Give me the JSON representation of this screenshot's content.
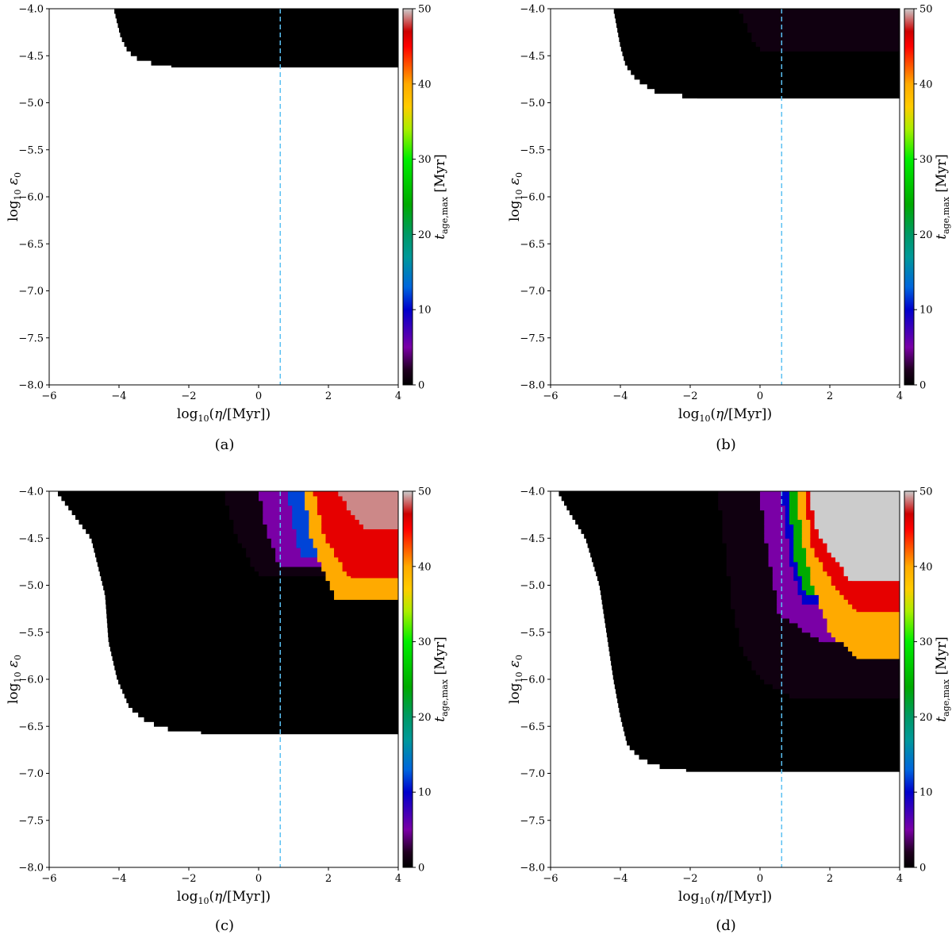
{
  "figure": {
    "captions": [
      "(a)",
      "(b)",
      "(c)",
      "(d)"
    ]
  },
  "colors": {
    "dashed_line": "#5bc0f2",
    "colormap": [
      {
        "v": 0,
        "c": "#000000"
      },
      {
        "v": 2,
        "c": "#200020"
      },
      {
        "v": 5,
        "c": "#7a00a6"
      },
      {
        "v": 10,
        "c": "#0000cc"
      },
      {
        "v": 13,
        "c": "#0066dd"
      },
      {
        "v": 17,
        "c": "#009999"
      },
      {
        "v": 20,
        "c": "#009966"
      },
      {
        "v": 24,
        "c": "#00aa00"
      },
      {
        "v": 30,
        "c": "#00ee00"
      },
      {
        "v": 34,
        "c": "#aaee00"
      },
      {
        "v": 37,
        "c": "#ffcc00"
      },
      {
        "v": 40,
        "c": "#ffaa00"
      },
      {
        "v": 45,
        "c": "#ff0000"
      },
      {
        "v": 47,
        "c": "#cc0000"
      },
      {
        "v": 50,
        "c": "#cccccc"
      }
    ]
  },
  "chart_data": [
    {
      "id": "a",
      "type": "heatmap",
      "xlabel": "log10(η/[Myr])",
      "ylabel": "log10 ε0",
      "colorbar_label": "t_age,max [Myr]",
      "xlim": [
        -6,
        4
      ],
      "ylim": [
        -8,
        -4
      ],
      "xticks": [
        "−6",
        "−4",
        "−2",
        "0",
        "2",
        "4"
      ],
      "yticks": [
        "−8.0",
        "−7.5",
        "−7.0",
        "−6.5",
        "−6.0",
        "−5.5",
        "−5.0",
        "−4.5",
        "−4.0"
      ],
      "cticks": [
        "0",
        "10",
        "20",
        "30",
        "40",
        "50"
      ],
      "clim": [
        0,
        50
      ],
      "vline_x": 0.62,
      "region_bottom": -4.62,
      "left_boundary": [
        [
          -4.0,
          -4.15
        ],
        [
          -4.15,
          -4.05
        ],
        [
          -4.3,
          -3.95
        ],
        [
          -4.45,
          -3.75
        ],
        [
          -4.55,
          -3.4
        ],
        [
          -4.62,
          -2.5
        ]
      ],
      "bands": []
    },
    {
      "id": "b",
      "type": "heatmap",
      "xlabel": "log10(η/[Myr])",
      "ylabel": "log10 ε0",
      "colorbar_label": "t_age,max [Myr]",
      "xlim": [
        -6,
        4
      ],
      "ylim": [
        -8,
        -4
      ],
      "xticks": [
        "−6",
        "−4",
        "−2",
        "0",
        "2",
        "4"
      ],
      "yticks": [
        "−8.0",
        "−7.5",
        "−7.0",
        "−6.5",
        "−6.0",
        "−5.5",
        "−5.0",
        "−4.5",
        "−4.0"
      ],
      "cticks": [
        "0",
        "10",
        "20",
        "30",
        "40",
        "50"
      ],
      "clim": [
        0,
        50
      ],
      "vline_x": 0.62,
      "region_bottom": -4.95,
      "left_boundary": [
        [
          -4.0,
          -4.2
        ],
        [
          -4.2,
          -4.1
        ],
        [
          -4.4,
          -4.0
        ],
        [
          -4.6,
          -3.85
        ],
        [
          -4.75,
          -3.55
        ],
        [
          -4.88,
          -3.0
        ],
        [
          -4.95,
          -1.8
        ]
      ],
      "bands": [
        {
          "value": 1,
          "top": -4.0,
          "bottom": -4.45,
          "x_from": [
            [
              -4.0,
              -0.6
            ],
            [
              -4.25,
              -0.3
            ],
            [
              -4.45,
              0.0
            ]
          ],
          "x_to": 4
        }
      ]
    },
    {
      "id": "c",
      "type": "heatmap",
      "xlabel": "log10(η/[Myr])",
      "ylabel": "log10 ε0",
      "colorbar_label": "t_age,max [Myr]",
      "xlim": [
        -6,
        4
      ],
      "ylim": [
        -8,
        -4
      ],
      "xticks": [
        "−6",
        "−4",
        "−2",
        "0",
        "2",
        "4"
      ],
      "yticks": [
        "−8.0",
        "−7.5",
        "−7.0",
        "−6.5",
        "−6.0",
        "−5.5",
        "−5.0",
        "−4.5",
        "−4.0"
      ],
      "cticks": [
        "0",
        "10",
        "20",
        "30",
        "40",
        "50"
      ],
      "clim": [
        0,
        50
      ],
      "vline_x": 0.62,
      "region_bottom": -6.58,
      "left_boundary": [
        [
          -4.0,
          -5.8
        ],
        [
          -4.1,
          -5.6
        ],
        [
          -4.25,
          -5.3
        ],
        [
          -4.5,
          -4.8
        ],
        [
          -5.1,
          -4.4
        ],
        [
          -5.6,
          -4.3
        ],
        [
          -6.0,
          -4.05
        ],
        [
          -6.3,
          -3.7
        ],
        [
          -6.45,
          -3.2
        ],
        [
          -6.55,
          -2.4
        ],
        [
          -6.58,
          -1.5
        ]
      ],
      "bands": [
        {
          "value": 1,
          "top": -4.0,
          "bottom": -4.9,
          "x_from": [
            [
              -4.0,
              -1.0
            ],
            [
              -4.5,
              -0.6
            ],
            [
              -4.9,
              0.0
            ]
          ],
          "x_to": 4
        },
        {
          "value": 5,
          "top": -4.0,
          "bottom": -4.8,
          "x_from": [
            [
              -4.0,
              0.0
            ],
            [
              -4.4,
              0.2
            ],
            [
              -4.8,
              0.6
            ]
          ],
          "x_to": 4
        },
        {
          "value": 12,
          "top": -4.0,
          "bottom": -4.7,
          "x_from": [
            [
              -4.0,
              0.8
            ],
            [
              -4.35,
              1.0
            ],
            [
              -4.7,
              1.2
            ]
          ],
          "x_to": 4
        },
        {
          "value": 40,
          "top": -4.0,
          "bottom": -5.15,
          "x_from": [
            [
              -4.0,
              1.3
            ],
            [
              -4.5,
              1.5
            ],
            [
              -4.8,
              1.8
            ],
            [
              -5.15,
              2.2
            ]
          ],
          "x_to": 4
        },
        {
          "value": 46,
          "top": -4.0,
          "bottom": -4.92,
          "x_from": [
            [
              -4.0,
              1.6
            ],
            [
              -4.5,
              1.9
            ],
            [
              -4.92,
              2.6
            ]
          ],
          "x_to": 4
        },
        {
          "value": 49,
          "top": -4.0,
          "bottom": -4.4,
          "x_from": [
            [
              -4.0,
              2.3
            ],
            [
              -4.2,
              2.6
            ],
            [
              -4.4,
              3.0
            ]
          ],
          "x_to": 4
        }
      ]
    },
    {
      "id": "d",
      "type": "heatmap",
      "xlabel": "log10(η/[Myr])",
      "ylabel": "log10 ε0",
      "colorbar_label": "t_age,max [Myr]",
      "xlim": [
        -6,
        4
      ],
      "ylim": [
        -8,
        -4
      ],
      "xticks": [
        "−6",
        "−4",
        "−2",
        "0",
        "2",
        "4"
      ],
      "yticks": [
        "−8.0",
        "−7.5",
        "−7.0",
        "−6.5",
        "−6.0",
        "−5.5",
        "−5.0",
        "−4.5",
        "−4.0"
      ],
      "cticks": [
        "0",
        "10",
        "20",
        "30",
        "40",
        "50"
      ],
      "clim": [
        0,
        50
      ],
      "vline_x": 0.62,
      "region_bottom": -6.98,
      "left_boundary": [
        [
          -4.0,
          -5.8
        ],
        [
          -4.2,
          -5.5
        ],
        [
          -4.5,
          -5.0
        ],
        [
          -5.0,
          -4.6
        ],
        [
          -5.5,
          -4.4
        ],
        [
          -6.0,
          -4.2
        ],
        [
          -6.4,
          -4.0
        ],
        [
          -6.7,
          -3.8
        ],
        [
          -6.85,
          -3.4
        ],
        [
          -6.95,
          -2.7
        ],
        [
          -6.98,
          -2.0
        ]
      ],
      "bands": [
        {
          "value": 1,
          "top": -4.0,
          "bottom": -6.2,
          "x_from": [
            [
              -4.0,
              -1.2
            ],
            [
              -4.6,
              -1.0
            ],
            [
              -5.2,
              -0.8
            ],
            [
              -5.7,
              -0.5
            ],
            [
              -6.0,
              0.0
            ],
            [
              -6.2,
              1.0
            ]
          ],
          "x_to": 4
        },
        {
          "value": 5,
          "top": -4.0,
          "bottom": -5.6,
          "x_from": [
            [
              -4.0,
              0.0
            ],
            [
              -4.6,
              0.2
            ],
            [
              -5.0,
              0.4
            ],
            [
              -5.3,
              0.5
            ],
            [
              -5.6,
              1.8
            ]
          ],
          "x_to": 4
        },
        {
          "value": 10,
          "top": -4.0,
          "bottom": -5.2,
          "x_from": [
            [
              -4.0,
              0.6
            ],
            [
              -4.8,
              0.9
            ],
            [
              -5.2,
              1.2
            ]
          ],
          "x_to": 4
        },
        {
          "value": 24,
          "top": -4.0,
          "bottom": -5.1,
          "x_from": [
            [
              -4.0,
              0.8
            ],
            [
              -4.7,
              1.0
            ],
            [
              -5.1,
              1.3
            ]
          ],
          "x_to": 4
        },
        {
          "value": 40,
          "top": -4.0,
          "bottom": -5.78,
          "x_from": [
            [
              -4.0,
              1.05
            ],
            [
              -4.5,
              1.2
            ],
            [
              -5.0,
              1.5
            ],
            [
              -5.5,
              2.0
            ],
            [
              -5.78,
              2.8
            ]
          ],
          "x_to": 4
        },
        {
          "value": 46,
          "top": -4.0,
          "bottom": -5.28,
          "x_from": [
            [
              -4.0,
              1.25
            ],
            [
              -4.6,
              1.5
            ],
            [
              -5.0,
              2.1
            ],
            [
              -5.28,
              2.8
            ]
          ],
          "x_to": 4
        },
        {
          "value": 50,
          "top": -4.0,
          "bottom": -4.95,
          "x_from": [
            [
              -4.0,
              1.4
            ],
            [
              -4.4,
              1.6
            ],
            [
              -4.7,
              2.1
            ],
            [
              -4.95,
              2.6
            ]
          ],
          "x_to": 4
        }
      ]
    }
  ]
}
